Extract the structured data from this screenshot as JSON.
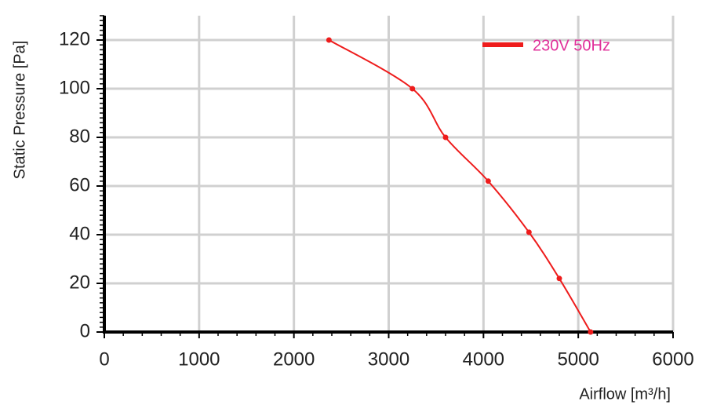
{
  "chart_data": {
    "type": "line",
    "x_label": "Airflow [m³/h]",
    "y_label": "Static Pressure [Pa]",
    "x": [
      2370,
      3250,
      3600,
      4050,
      4480,
      4800,
      5130
    ],
    "series": [
      {
        "name": "230V 50Hz",
        "color": "#ee1c1c",
        "values": [
          120,
          100,
          80,
          62,
          41,
          22,
          0
        ]
      }
    ],
    "legend_text_color": "#e0309a",
    "xlim": [
      0,
      6000
    ],
    "xticks": [
      0,
      1000,
      2000,
      3000,
      4000,
      5000,
      6000
    ],
    "ylim": [
      0,
      130
    ],
    "yticks": [
      0,
      20,
      40,
      60,
      80,
      100,
      120
    ],
    "grid": true,
    "legend": "upper right"
  }
}
